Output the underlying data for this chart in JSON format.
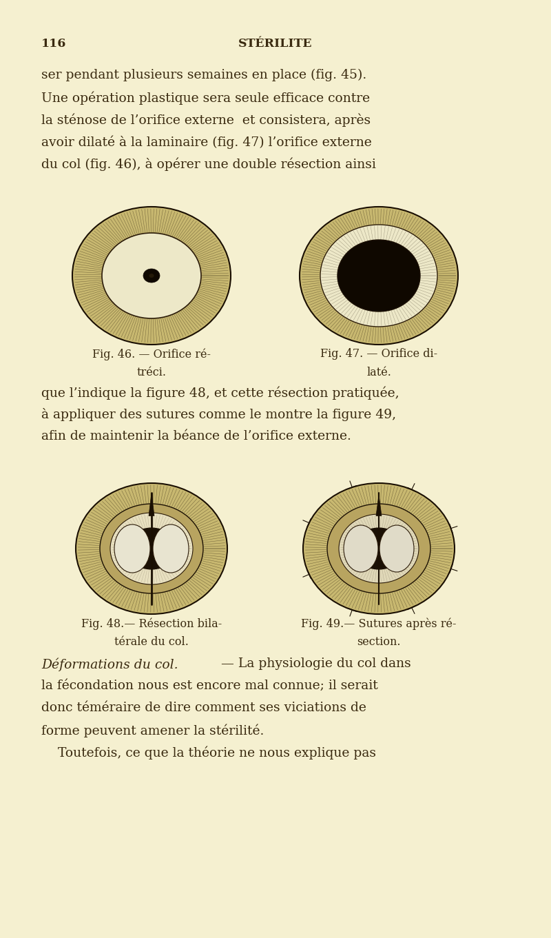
{
  "bg_color": "#f5f0d0",
  "text_color": "#3a2a10",
  "page_number": "116",
  "header_title": "STÉRILITE",
  "line1": "ser pendant plusieurs semaines en place (fig. 45).",
  "line2": "Une opération plastique sera seule efficace contre",
  "line3": "la sténose de l’orifice externe  et consistera, après",
  "line4": "avoir dilaté à la laminaire (fig. 47) l’orifice externe",
  "line5": "du col (fig. 46), à opérer une double résection ainsi",
  "caption_46_1": "Fig. 46. — Orifice ré-",
  "caption_46_2": "tréci.",
  "caption_47_1": "Fig. 47. — Orifice di-",
  "caption_47_2": "laté.",
  "line6": "que l’indique la figure 48, et cette résection pratiquée,",
  "line7": "à appliquer des sutures comme le montre la figure 49,",
  "line8": "afin de maintenir la béance de l’orifice externe.",
  "caption_48_1": "Fig. 48.— Résection bila-",
  "caption_48_2": "térale du col.",
  "caption_49_1": "Fig. 49.— Sutures après ré-",
  "caption_49_2": "section.",
  "italic_line1": "Déformations du col.",
  "italic_rest": " — La physiologie du col dans",
  "para2_line1": "la fécondation nous est encore mal connue; il serait",
  "para2_line2": "donc téméraire de dire comment ses viciations de",
  "para2_line3": "forme peuvent amener la stérilité.",
  "para3_line1": "    Toutefois, ce que la théorie ne nous explique pas",
  "font_size_body": 13.5,
  "font_size_header": 12.5,
  "font_size_caption": 11.5
}
